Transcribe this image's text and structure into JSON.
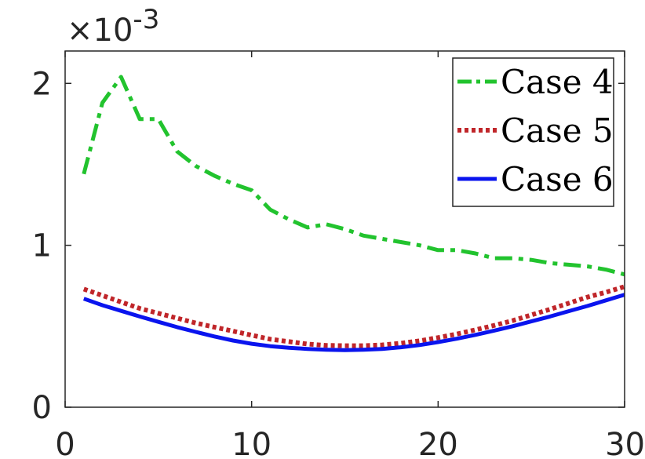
{
  "chart_data": {
    "type": "line",
    "title": "",
    "xlabel": "",
    "ylabel": "",
    "exponent_label": {
      "prefix": "×10",
      "power": "-3"
    },
    "xlim": [
      0,
      30
    ],
    "ylim": [
      0,
      0.0022
    ],
    "xticks": [
      0,
      10,
      20,
      30
    ],
    "xtick_labels": [
      "0",
      "10",
      "20",
      "30"
    ],
    "yticks": [
      0,
      0.001,
      0.002
    ],
    "ytick_labels": [
      "0",
      "1",
      "2"
    ],
    "grid": false,
    "legend_position": "top-right",
    "x": [
      1,
      2,
      3,
      4,
      5,
      6,
      7,
      8,
      9,
      10,
      11,
      12,
      13,
      14,
      15,
      16,
      17,
      18,
      19,
      20,
      21,
      22,
      23,
      24,
      25,
      26,
      27,
      28,
      29,
      30
    ],
    "series": [
      {
        "name": "Case 4",
        "color": "#22c32e",
        "style": "dashdot",
        "values": [
          0.00144,
          0.00188,
          0.00204,
          0.00178,
          0.00178,
          0.00158,
          0.00149,
          0.00143,
          0.00138,
          0.00134,
          0.00122,
          0.00116,
          0.00111,
          0.00113,
          0.0011,
          0.00106,
          0.00104,
          0.00102,
          0.001,
          0.00097,
          0.00097,
          0.00095,
          0.00092,
          0.00092,
          0.00091,
          0.00089,
          0.00088,
          0.00087,
          0.00085,
          0.00082
        ]
      },
      {
        "name": "Case 5",
        "color": "#c0262a",
        "style": "dotted",
        "values": [
          0.00073,
          0.00069,
          0.00065,
          0.00061,
          0.00058,
          0.00055,
          0.00052,
          0.000495,
          0.00047,
          0.000445,
          0.00042,
          0.000405,
          0.00039,
          0.000382,
          0.00038,
          0.00038,
          0.000385,
          0.000395,
          0.00041,
          0.00043,
          0.000452,
          0.000478,
          0.000505,
          0.000535,
          0.00057,
          0.000605,
          0.000642,
          0.00068,
          0.00071,
          0.000745
        ]
      },
      {
        "name": "Case 6",
        "color": "#0a14ee",
        "style": "solid",
        "values": [
          0.00067,
          0.00063,
          0.000595,
          0.00056,
          0.000527,
          0.000495,
          0.000465,
          0.000437,
          0.000412,
          0.000392,
          0.000377,
          0.000367,
          0.00036,
          0.000355,
          0.000353,
          0.000355,
          0.00036,
          0.00037,
          0.000384,
          0.000402,
          0.000423,
          0.000447,
          0.000473,
          0.0005,
          0.00053,
          0.00056,
          0.000593,
          0.000625,
          0.00066,
          0.000695
        ]
      }
    ]
  }
}
